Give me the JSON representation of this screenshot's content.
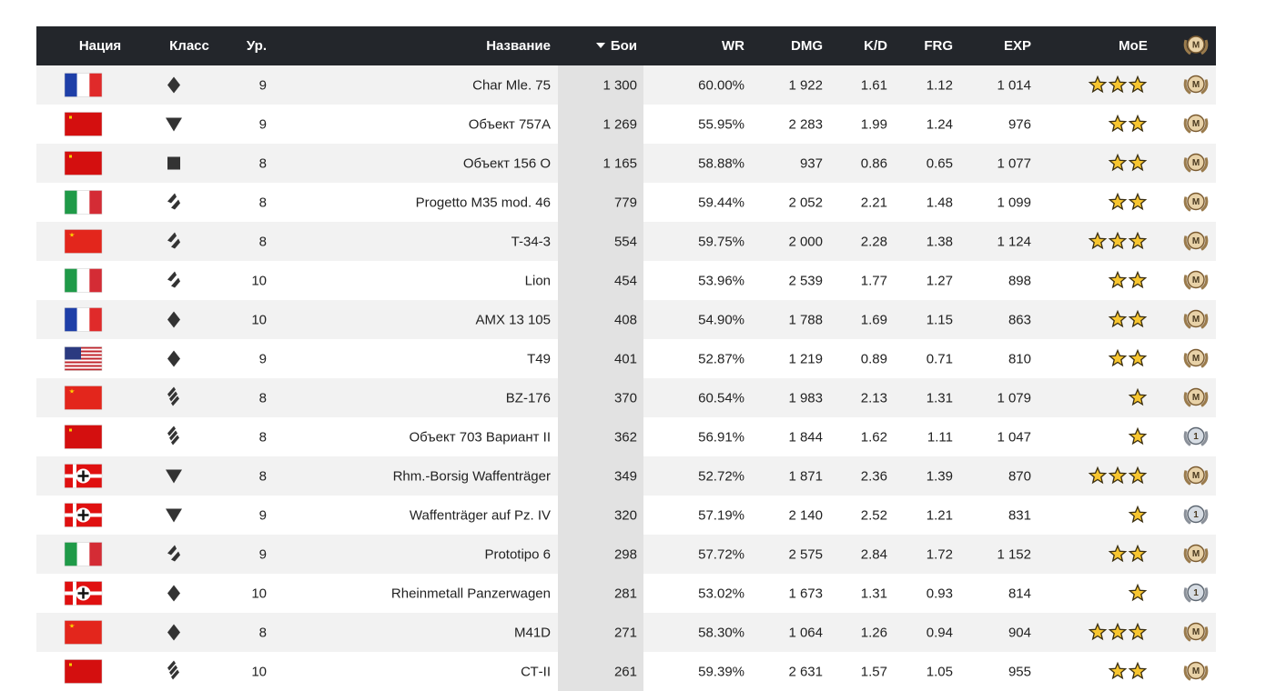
{
  "table": {
    "header": [
      "Нация",
      "Класс",
      "Ур.",
      "Название",
      "Бои",
      "WR",
      "DMG",
      "K/D",
      "FRG",
      "EXP",
      "MoE"
    ],
    "header_badge": "M",
    "rows": [
      [
        "9",
        "Char Mle. 75",
        "1 300",
        "60.00%",
        "1 922",
        "1.61",
        "1.12",
        "1 014",
        3,
        "M"
      ],
      [
        "9",
        "Объект 757А",
        "1 269",
        "55.95%",
        "2 283",
        "1.99",
        "1.24",
        "976",
        2,
        "M"
      ],
      [
        "8",
        "Объект 156 О",
        "1 165",
        "58.88%",
        "937",
        "0.86",
        "0.65",
        "1 077",
        2,
        "M"
      ],
      [
        "8",
        "Progetto M35 mod. 46",
        "779",
        "59.44%",
        "2 052",
        "2.21",
        "1.48",
        "1 099",
        2,
        "M"
      ],
      [
        "8",
        "T-34-3",
        "554",
        "59.75%",
        "2 000",
        "2.28",
        "1.38",
        "1 124",
        3,
        "M"
      ],
      [
        "10",
        "Lion",
        "454",
        "53.96%",
        "2 539",
        "1.77",
        "1.27",
        "898",
        2,
        "M"
      ],
      [
        "10",
        "AMX 13 105",
        "408",
        "54.90%",
        "1 788",
        "1.69",
        "1.15",
        "863",
        2,
        "M"
      ],
      [
        "9",
        "T49",
        "401",
        "52.87%",
        "1 219",
        "0.89",
        "0.71",
        "810",
        2,
        "M"
      ],
      [
        "8",
        "BZ-176",
        "370",
        "60.54%",
        "1 983",
        "2.13",
        "1.31",
        "1 079",
        1,
        "M"
      ],
      [
        "8",
        "Объект 703 Вариант II",
        "362",
        "56.91%",
        "1 844",
        "1.62",
        "1.11",
        "1 047",
        1,
        "1"
      ],
      [
        "8",
        "Rhm.-Borsig Waffenträger",
        "349",
        "52.72%",
        "1 871",
        "2.36",
        "1.39",
        "870",
        3,
        "M"
      ],
      [
        "9",
        "Waffenträger auf Pz. IV",
        "320",
        "57.19%",
        "2 140",
        "2.52",
        "1.21",
        "831",
        1,
        "1"
      ],
      [
        "9",
        "Prototipo 6",
        "298",
        "57.72%",
        "2 575",
        "2.84",
        "1.72",
        "1 152",
        2,
        "M"
      ],
      [
        "10",
        "Rheinmetall Panzerwagen",
        "281",
        "53.02%",
        "1 673",
        "1.31",
        "0.93",
        "814",
        1,
        "1"
      ],
      [
        "8",
        "M41D",
        "271",
        "58.30%",
        "1 064",
        "1.26",
        "0.94",
        "904",
        3,
        "M"
      ],
      [
        "10",
        "СТ-II",
        "261",
        "59.39%",
        "2 631",
        "1.57",
        "1.05",
        "955",
        2,
        "M"
      ]
    ]
  }
}
